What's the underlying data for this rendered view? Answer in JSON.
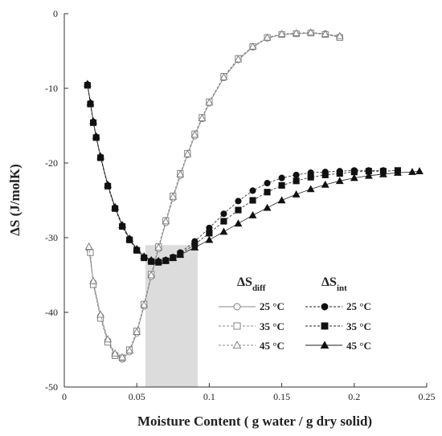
{
  "chart_data": {
    "type": "scatter",
    "xlabel": "Moisture Content ( g water / g dry solid)",
    "ylabel": "ΔS (J/molK)",
    "xlim": [
      0,
      0.25
    ],
    "ylim": [
      -50,
      0
    ],
    "x_ticks": [
      "0",
      "0.05",
      "0.1",
      "0.15",
      "0.2",
      "0.25"
    ],
    "y_ticks": [
      "0",
      "-10",
      "-20",
      "-30",
      "-40",
      "-50"
    ],
    "x_tick_values": [
      0,
      0.05,
      0.1,
      0.15,
      0.2,
      0.25
    ],
    "y_tick_values": [
      0,
      -10,
      -20,
      -30,
      -40,
      -50
    ],
    "shaded_region": {
      "x_from": 0.056,
      "x_to": 0.092,
      "y_from": -50,
      "y_to": -31,
      "color": "#dcdcdc"
    },
    "legend": {
      "placement": "bottom-right",
      "group_diff_main": "ΔS",
      "group_diff_sub": "diff",
      "group_int_main": "ΔS",
      "group_int_sub": "int",
      "row1": "25 °C",
      "row2": "35 °C",
      "row3": "45 °C"
    },
    "series": [
      {
        "group": "diff",
        "name": "25 °C",
        "marker": "circle",
        "filled": false,
        "line": "solid",
        "x": [
          0.017,
          0.02,
          0.025,
          0.03,
          0.035,
          0.04,
          0.045,
          0.05,
          0.055,
          0.06,
          0.065,
          0.07,
          0.075,
          0.08,
          0.085,
          0.09,
          0.095,
          0.1,
          0.11,
          0.12,
          0.13,
          0.14,
          0.15,
          0.16,
          0.17,
          0.18,
          0.19
        ],
        "y": [
          -31.5,
          -36,
          -40.5,
          -43.8,
          -45.7,
          -46.3,
          -45.3,
          -42.8,
          -39.2,
          -35.2,
          -31.5,
          -28,
          -24.7,
          -21.7,
          -18.9,
          -16.4,
          -14.1,
          -12,
          -8.6,
          -6.2,
          -4.5,
          -3.3,
          -2.8,
          -2.7,
          -2.6,
          -2.7,
          -3.1
        ]
      },
      {
        "group": "diff",
        "name": "35 °C",
        "marker": "square",
        "filled": false,
        "line": "dashed",
        "x": [
          0.018,
          0.02,
          0.025,
          0.03,
          0.035,
          0.04,
          0.045,
          0.05,
          0.055,
          0.06,
          0.065,
          0.07,
          0.075,
          0.08,
          0.085,
          0.09,
          0.095,
          0.1,
          0.11,
          0.12,
          0.13,
          0.14,
          0.15,
          0.16,
          0.17,
          0.18,
          0.19
        ],
        "y": [
          -32,
          -36.3,
          -40.8,
          -44,
          -45.8,
          -46.1,
          -45,
          -42.5,
          -38.9,
          -34.9,
          -31.2,
          -27.7,
          -24.4,
          -21.4,
          -18.7,
          -16.1,
          -13.9,
          -11.8,
          -8.4,
          -6,
          -4.4,
          -3.2,
          -2.8,
          -2.7,
          -2.6,
          -2.8,
          -3.2
        ]
      },
      {
        "group": "diff",
        "name": "45 °C",
        "marker": "triangle",
        "filled": false,
        "line": "dashed",
        "x": [
          0.017,
          0.02,
          0.025,
          0.03,
          0.035,
          0.04,
          0.045,
          0.05,
          0.055,
          0.06,
          0.065,
          0.07,
          0.075,
          0.08,
          0.085,
          0.09,
          0.095,
          0.1,
          0.11,
          0.12,
          0.13,
          0.14,
          0.15,
          0.16,
          0.17,
          0.18,
          0.19
        ],
        "y": [
          -31.2,
          -35.8,
          -40.3,
          -43.6,
          -45.5,
          -46,
          -45.1,
          -42.6,
          -39,
          -35,
          -31.3,
          -27.8,
          -24.5,
          -21.5,
          -18.8,
          -16.2,
          -14,
          -11.9,
          -8.5,
          -6.1,
          -4.4,
          -3.2,
          -2.7,
          -2.6,
          -2.5,
          -2.7,
          -3
        ]
      },
      {
        "group": "int",
        "name": "25 °C",
        "marker": "circle",
        "filled": true,
        "line": "dashed",
        "x": [
          0.016,
          0.018,
          0.02,
          0.022,
          0.025,
          0.03,
          0.035,
          0.04,
          0.045,
          0.05,
          0.055,
          0.06,
          0.065,
          0.07,
          0.075,
          0.08,
          0.09,
          0.1,
          0.11,
          0.12,
          0.13,
          0.14,
          0.15,
          0.16,
          0.17,
          0.18,
          0.19,
          0.2,
          0.21,
          0.22
        ],
        "y": [
          -9.5,
          -12,
          -14.5,
          -16.5,
          -19.2,
          -23,
          -26,
          -28.4,
          -30.2,
          -31.6,
          -32.6,
          -33.1,
          -33.2,
          -33,
          -32.6,
          -32,
          -30.5,
          -28.7,
          -26.8,
          -25.1,
          -23.7,
          -22.7,
          -22,
          -21.6,
          -21.3,
          -21.2,
          -21.1,
          -21,
          -21,
          -21
        ]
      },
      {
        "group": "int",
        "name": "35 °C",
        "marker": "square",
        "filled": true,
        "line": "dashed",
        "x": [
          0.016,
          0.018,
          0.02,
          0.022,
          0.025,
          0.03,
          0.035,
          0.04,
          0.045,
          0.05,
          0.055,
          0.06,
          0.065,
          0.07,
          0.075,
          0.08,
          0.09,
          0.1,
          0.11,
          0.12,
          0.13,
          0.14,
          0.15,
          0.16,
          0.17,
          0.18,
          0.19,
          0.2,
          0.21,
          0.22,
          0.23
        ],
        "y": [
          -9.6,
          -12.1,
          -14.6,
          -16.6,
          -19.3,
          -23.1,
          -26.1,
          -28.5,
          -30.3,
          -31.7,
          -32.7,
          -33.2,
          -33.3,
          -33.1,
          -32.7,
          -32.2,
          -30.9,
          -29.4,
          -27.8,
          -26.3,
          -25,
          -23.9,
          -23,
          -22.4,
          -21.9,
          -21.6,
          -21.4,
          -21.2,
          -21.1,
          -21.1,
          -21
        ]
      },
      {
        "group": "int",
        "name": "45 °C",
        "marker": "triangle",
        "filled": true,
        "line": "solid",
        "x": [
          0.016,
          0.018,
          0.02,
          0.022,
          0.025,
          0.03,
          0.035,
          0.04,
          0.045,
          0.05,
          0.055,
          0.06,
          0.065,
          0.07,
          0.075,
          0.08,
          0.09,
          0.1,
          0.11,
          0.12,
          0.13,
          0.14,
          0.15,
          0.16,
          0.17,
          0.18,
          0.19,
          0.2,
          0.21,
          0.22,
          0.23,
          0.24,
          0.245
        ],
        "y": [
          -9.4,
          -11.9,
          -14.4,
          -16.4,
          -19.1,
          -22.9,
          -25.9,
          -28.3,
          -30.1,
          -31.5,
          -32.5,
          -33,
          -33.1,
          -33,
          -32.7,
          -32.3,
          -31.3,
          -30.3,
          -29.2,
          -28.1,
          -27,
          -26,
          -25,
          -24.2,
          -23.5,
          -22.9,
          -22.4,
          -22,
          -21.7,
          -21.5,
          -21.3,
          -21.2,
          -21.1
        ]
      }
    ]
  }
}
